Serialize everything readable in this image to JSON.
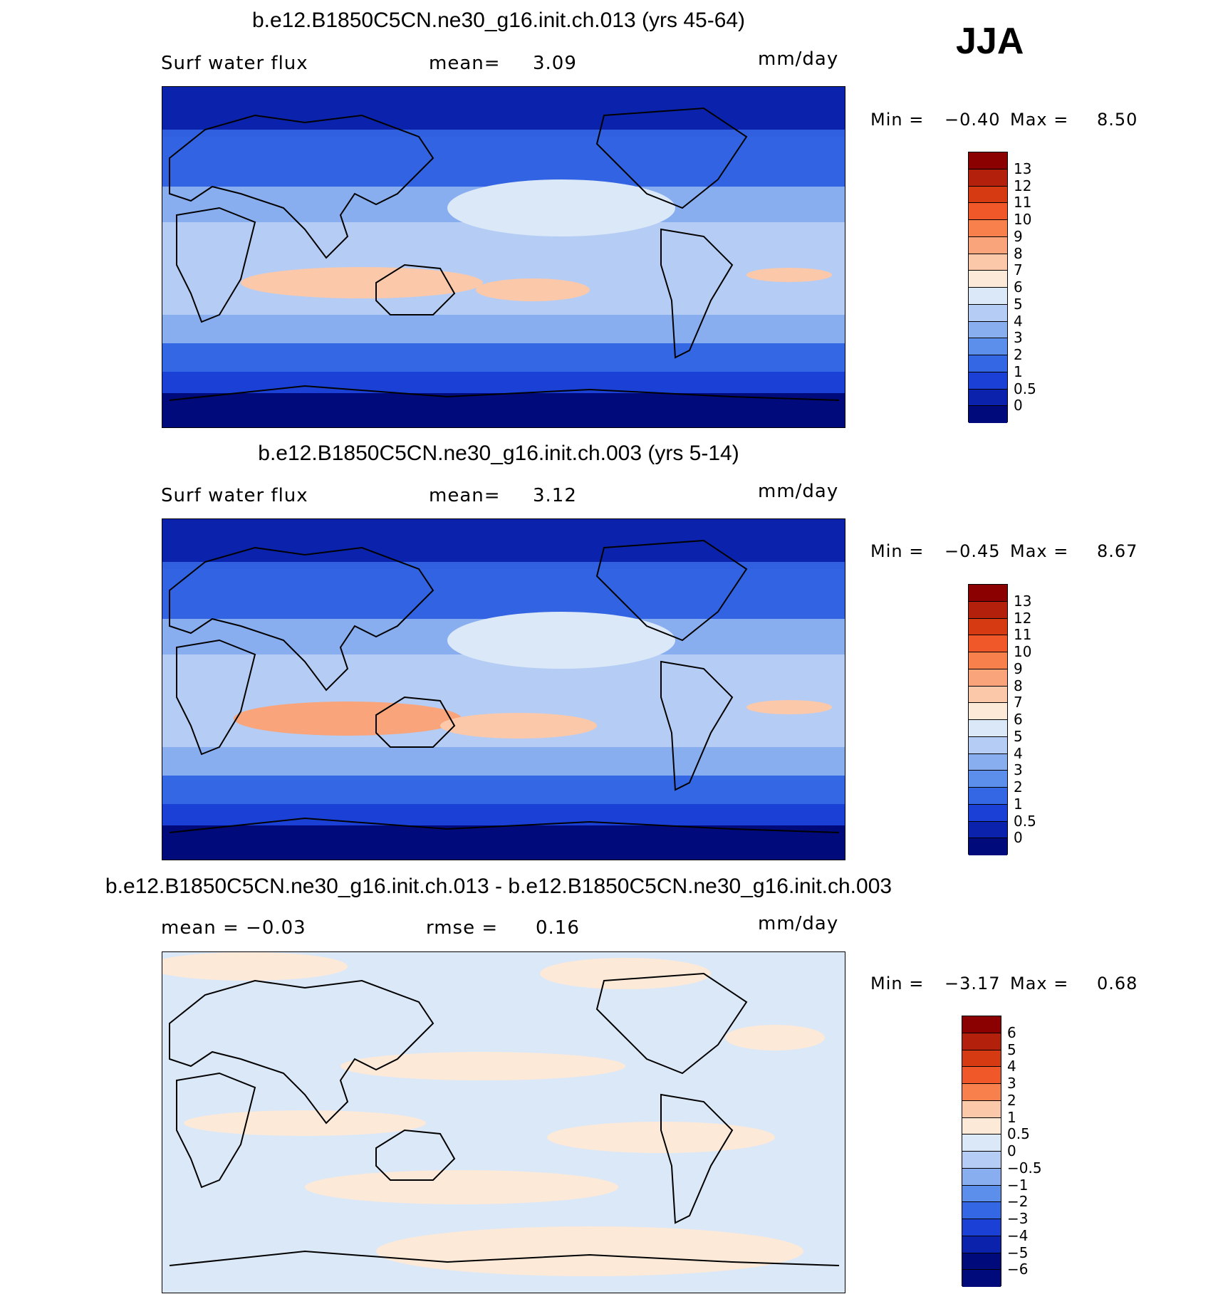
{
  "season": "JJA",
  "units": "mm/day",
  "panels": [
    {
      "title": "b.e12.B1850C5CN.ne30_g16.init.ch.013 (yrs 45-64)",
      "left_label": "Surf water flux",
      "center_label": "mean=",
      "center_value": "3.09",
      "units": "mm/day",
      "min_label": "Min =",
      "min_value": "−0.40",
      "max_label": "Max =",
      "max_value": "8.50",
      "colorbar": {
        "levels": [
          "13",
          "12",
          "11",
          "10",
          "9",
          "8",
          "7",
          "6",
          "5",
          "4",
          "3",
          "2",
          "1",
          "0.5",
          "0"
        ],
        "colors": [
          "#8b0000",
          "#b3200c",
          "#d63a12",
          "#f0582a",
          "#f7804d",
          "#f9a47a",
          "#fbc8aa",
          "#fce9d8",
          "#dbe8f8",
          "#b5cdf4",
          "#88aef0",
          "#5c8eec",
          "#3467e4",
          "#1a40d6",
          "#0a22ac",
          "#000a7a"
        ]
      }
    },
    {
      "title": "b.e12.B1850C5CN.ne30_g16.init.ch.003 (yrs 5-14)",
      "left_label": "Surf water flux",
      "center_label": "mean=",
      "center_value": "3.12",
      "units": "mm/day",
      "min_label": "Min =",
      "min_value": "−0.45",
      "max_label": "Max =",
      "max_value": "8.67",
      "colorbar": {
        "levels": [
          "13",
          "12",
          "11",
          "10",
          "9",
          "8",
          "7",
          "6",
          "5",
          "4",
          "3",
          "2",
          "1",
          "0.5",
          "0"
        ],
        "colors": [
          "#8b0000",
          "#b3200c",
          "#d63a12",
          "#f0582a",
          "#f7804d",
          "#f9a47a",
          "#fbc8aa",
          "#fce9d8",
          "#dbe8f8",
          "#b5cdf4",
          "#88aef0",
          "#5c8eec",
          "#3467e4",
          "#1a40d6",
          "#0a22ac",
          "#000a7a"
        ]
      }
    },
    {
      "title": "b.e12.B1850C5CN.ne30_g16.init.ch.013 - b.e12.B1850C5CN.ne30_g16.init.ch.003",
      "left_label": "mean = −0.03",
      "center_label": "rmse =",
      "center_value": "0.16",
      "units": "mm/day",
      "min_label": "Min =",
      "min_value": "−3.17",
      "max_label": "Max =",
      "max_value": "0.68",
      "colorbar": {
        "levels": [
          "6",
          "5",
          "4",
          "3",
          "2",
          "1",
          "0.5",
          "0",
          "−0.5",
          "−1",
          "−2",
          "−3",
          "−4",
          "−5",
          "−6"
        ],
        "colors": [
          "#8b0000",
          "#b3200c",
          "#d63a12",
          "#f0582a",
          "#f7804d",
          "#fbc8aa",
          "#fce9d8",
          "#dbe8f8",
          "#b5cdf4",
          "#88aef0",
          "#5c8eec",
          "#3467e4",
          "#1a40d6",
          "#0a22ac",
          "#000a7a",
          "#000a7a"
        ]
      }
    }
  ],
  "map_colors": {
    "polar": "#000a7a",
    "dark": "#0a22ac",
    "mid": "#1a40d6",
    "blue": "#3467e4",
    "light": "#88aef0",
    "pale": "#b5cdf4",
    "palest": "#dbe8f8",
    "warm": "#fbc8aa",
    "diff_base": "#dbe8f8",
    "diff_warm": "#fce9d8"
  }
}
